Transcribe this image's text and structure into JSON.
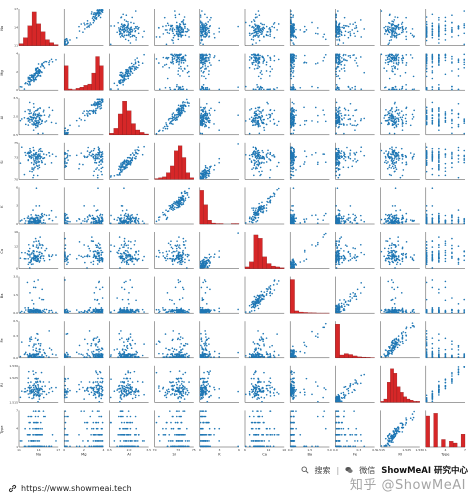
{
  "chart_data": {
    "type": "scatter",
    "variables": [
      "Na",
      "Mg",
      "Al",
      "Si",
      "K",
      "Ca",
      "Ba",
      "Fe",
      "RI",
      "Type"
    ],
    "tick_labels": {
      "RI": [
        "1.515",
        "1.520",
        "1.525",
        "1.530"
      ],
      "Na": [
        "11",
        "12",
        "13",
        "14",
        "15",
        "16",
        "17"
      ],
      "Mg": [
        "0",
        "1",
        "2",
        "3",
        "4"
      ],
      "Al": [
        "0.5",
        "1.0",
        "1.5",
        "2.0",
        "2.5",
        "3.0",
        "3.5"
      ],
      "Si": [
        "70",
        "71",
        "72",
        "73",
        "74",
        "75"
      ],
      "K": [
        "0",
        "1",
        "2",
        "3",
        "4",
        "5",
        "6"
      ],
      "Ca": [
        "6",
        "8",
        "10",
        "12",
        "14",
        "16"
      ],
      "Ba": [
        "0.0",
        "0.5",
        "1.0",
        "1.5",
        "2.0",
        "2.5",
        "3.0"
      ],
      "Fe": [
        "0.0",
        "0.1",
        "0.2",
        "0.3",
        "0.4",
        "0.5"
      ],
      "Type": [
        "1",
        "2",
        "3",
        "4",
        "5",
        "6",
        "7"
      ]
    },
    "histograms": {
      "RI": [
        1,
        3,
        18,
        30,
        26,
        14,
        9,
        5,
        3,
        2,
        1,
        1
      ],
      "Na": [
        2,
        8,
        20,
        34,
        22,
        14,
        6,
        3,
        1
      ],
      "Mg": [
        40,
        2,
        1,
        3,
        5,
        8,
        10,
        28,
        55,
        40
      ],
      "Al": [
        2,
        8,
        26,
        42,
        30,
        14,
        6,
        3,
        1
      ],
      "Si": [
        1,
        2,
        3,
        8,
        16,
        34,
        40,
        26,
        8,
        2
      ],
      "K": [
        70,
        40,
        8,
        2,
        1,
        1,
        0,
        0,
        1,
        1
      ],
      "Ca": [
        2,
        8,
        40,
        36,
        14,
        6,
        3,
        2,
        1
      ],
      "Ba": [
        176,
        12,
        6,
        4,
        3,
        2,
        1,
        1,
        1
      ],
      "Fe": [
        144,
        12,
        18,
        14,
        8,
        4,
        3,
        2,
        1
      ],
      "Type": [
        70,
        0,
        76,
        0,
        17,
        0,
        13,
        9,
        0,
        29
      ]
    },
    "type_levels": [
      1,
      2,
      3,
      5,
      6,
      7
    ],
    "xlim": {
      "Na": [
        10.5,
        17.5
      ],
      "Mg": [
        -0.3,
        4.5
      ],
      "Al": [
        0.2,
        3.7
      ],
      "Si": [
        69.5,
        75.8
      ],
      "K": [
        -0.3,
        6.5
      ],
      "Ca": [
        5.2,
        16.8
      ],
      "Ba": [
        -0.2,
        3.3
      ],
      "Fe": [
        -0.03,
        0.53
      ],
      "RI": [
        1.5105,
        1.5345
      ],
      "Type": [
        0.5,
        7.5
      ]
    },
    "point_color": "#1f77b4",
    "histogram_color": "#d62728",
    "grid": false,
    "legend": "none"
  },
  "footer": {
    "url": "https://www.showmeai.tech",
    "search_label": "搜索",
    "wechat_label": "微信",
    "brand": "ShowMeAI 研究中心",
    "watermark": "知乎 @ShowMeAI"
  },
  "icons": [
    "link-icon",
    "search-icon",
    "wechat-icon",
    "separator-bar"
  ]
}
